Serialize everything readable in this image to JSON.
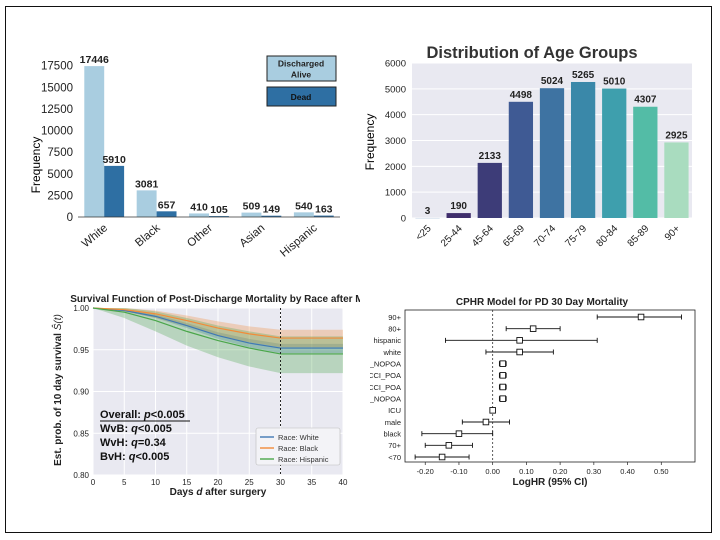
{
  "colors": {
    "alive": "#a9cde0",
    "dead": "#2e6fa3",
    "age_palette": [
      "#c5d5e6",
      "#3f2d6b",
      "#3d3c78",
      "#3f5a94",
      "#3e73a2",
      "#3a88a9",
      "#3e9fad",
      "#53bca6",
      "#a9dcbf"
    ],
    "km_white": "#3f78b4",
    "km_black": "#f28b38",
    "km_hispanic": "#4aa64a",
    "plot_bg": "#e9e9f1",
    "grid": "#ffffff"
  },
  "chart_data": [
    {
      "type": "bar",
      "categories": [
        "White",
        "Black",
        "Other",
        "Asian",
        "Hispanic"
      ],
      "series": [
        {
          "name": "Discharged Alive",
          "values": [
            17446,
            3081,
            410,
            509,
            540
          ]
        },
        {
          "name": "Dead",
          "values": [
            5910,
            657,
            105,
            149,
            163
          ]
        }
      ],
      "ylabel": "Frequency",
      "ylim": [
        0,
        18500
      ],
      "yticks": [
        "0",
        "2500",
        "5000",
        "7500",
        "10000",
        "12500",
        "15000",
        "17500"
      ],
      "legend": [
        "Discharged Alive",
        "Dead"
      ],
      "legend_placement": "top-right"
    },
    {
      "type": "bar",
      "title": "Distribution of Age Groups",
      "categories": [
        "<25",
        "25-44",
        "45-64",
        "65-69",
        "70-74",
        "75-79",
        "80-84",
        "85-89",
        "90+"
      ],
      "values": [
        3,
        190,
        2133,
        4498,
        5024,
        5265,
        5010,
        4307,
        2925
      ],
      "ylabel": "Frequency",
      "ylim": [
        0,
        6000
      ],
      "yticks": [
        "0",
        "1000",
        "2000",
        "3000",
        "4000",
        "5000",
        "6000"
      ],
      "grid": true
    },
    {
      "type": "line",
      "title": "Survival Function of Post-Discharge Mortality by Race after MT",
      "xlabel_parts": [
        "Days ",
        "d",
        " after surgery"
      ],
      "ylabel_parts": [
        "Est. prob. of 10 day survival ",
        "Ŝ(t)"
      ],
      "xlim": [
        0,
        40
      ],
      "ylim": [
        0.8,
        1.0
      ],
      "xticks": [
        "0",
        "5",
        "10",
        "15",
        "20",
        "25",
        "30",
        "35",
        "40"
      ],
      "yticks": [
        "0.80",
        "0.85",
        "0.90",
        "0.95",
        "1.00"
      ],
      "reference_x": 30,
      "grid": true,
      "series": [
        {
          "name": "Race: White",
          "x": [
            0,
            5,
            10,
            15,
            20,
            25,
            30,
            35,
            40
          ],
          "y": [
            1.0,
            0.997,
            0.99,
            0.979,
            0.967,
            0.958,
            0.952,
            0.952,
            0.952
          ],
          "ci_low": [
            1.0,
            0.996,
            0.988,
            0.976,
            0.963,
            0.953,
            0.946,
            0.946,
            0.946
          ],
          "ci_high": [
            1.0,
            0.998,
            0.992,
            0.982,
            0.971,
            0.963,
            0.957,
            0.957,
            0.957
          ]
        },
        {
          "name": "Race: Black",
          "x": [
            0,
            5,
            10,
            15,
            20,
            25,
            30,
            35,
            40
          ],
          "y": [
            1.0,
            0.998,
            0.993,
            0.985,
            0.976,
            0.969,
            0.964,
            0.964,
            0.964
          ],
          "ci_low": [
            1.0,
            0.996,
            0.988,
            0.978,
            0.967,
            0.959,
            0.953,
            0.953,
            0.953
          ],
          "ci_high": [
            1.0,
            1.0,
            0.997,
            0.991,
            0.984,
            0.978,
            0.974,
            0.974,
            0.974
          ]
        },
        {
          "name": "Race: Hispanic",
          "x": [
            0,
            5,
            10,
            15,
            20,
            25,
            30,
            35,
            40
          ],
          "y": [
            1.0,
            0.995,
            0.985,
            0.972,
            0.961,
            0.952,
            0.945,
            0.945,
            0.945
          ],
          "ci_low": [
            1.0,
            0.988,
            0.972,
            0.955,
            0.941,
            0.93,
            0.922,
            0.922,
            0.922
          ],
          "ci_high": [
            1.0,
            1.0,
            0.996,
            0.988,
            0.979,
            0.972,
            0.966,
            0.966,
            0.966
          ]
        }
      ],
      "annotations": [
        {
          "parts": [
            "Overall: ",
            "p",
            "<0.005"
          ],
          "underline": true
        },
        {
          "parts": [
            "WvB: ",
            "q",
            "<0.005"
          ]
        },
        {
          "parts": [
            "WvH: ",
            "q",
            "=0.34"
          ]
        },
        {
          "parts": [
            "BvH: ",
            "q",
            "<0.005"
          ]
        }
      ],
      "legend_placement": "bottom-right"
    },
    {
      "type": "scatter",
      "subtype": "forest",
      "title": "CPHR Model for PD 30 Day Mortality",
      "xlabel": "LogHR (95% CI)",
      "xlim": [
        -0.26,
        0.6
      ],
      "xticks": [
        "-0.20",
        "-0.10",
        "0.00",
        "0.10",
        "0.20",
        "0.30",
        "0.40",
        "0.50"
      ],
      "reference_x": 0,
      "rows": [
        {
          "label": "90+",
          "est": 0.44,
          "lo": 0.31,
          "hi": 0.56
        },
        {
          "label": "80+",
          "est": 0.12,
          "lo": 0.04,
          "hi": 0.2
        },
        {
          "label": "hispanic",
          "est": 0.08,
          "lo": -0.14,
          "hi": 0.31
        },
        {
          "label": "white",
          "est": 0.08,
          "lo": -0.02,
          "hi": 0.18
        },
        {
          "label": "CCI_NOPOA",
          "est": 0.03,
          "lo": 0.02,
          "hi": 0.04
        },
        {
          "label": "CCI_POA",
          "est": 0.03,
          "lo": 0.02,
          "hi": 0.04
        },
        {
          "label": "ISCCI_POA",
          "est": 0.03,
          "lo": 0.02,
          "hi": 0.04
        },
        {
          "label": "ISCCI_NOPOA",
          "est": 0.03,
          "lo": 0.02,
          "hi": 0.04
        },
        {
          "label": "ICU",
          "est": 0.0,
          "lo": -0.005,
          "hi": 0.005
        },
        {
          "label": "male",
          "est": -0.02,
          "lo": -0.09,
          "hi": 0.05
        },
        {
          "label": "black",
          "est": -0.1,
          "lo": -0.21,
          "hi": 0.0
        },
        {
          "label": "70+",
          "est": -0.13,
          "lo": -0.2,
          "hi": -0.06
        },
        {
          "label": "<70",
          "est": -0.15,
          "lo": -0.23,
          "hi": -0.07
        }
      ]
    }
  ]
}
